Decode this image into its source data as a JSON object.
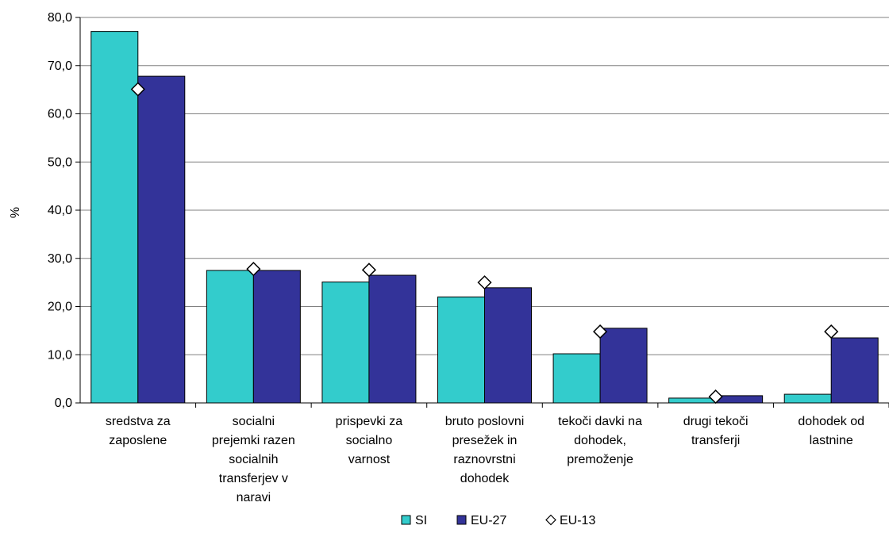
{
  "chart_data": {
    "type": "bar",
    "categories": [
      [
        "sredstva za",
        "zaposlene"
      ],
      [
        "socialni",
        "prejemki razen",
        "socialnih",
        "transferjev v",
        "naravi"
      ],
      [
        "prispevki za",
        "socialno",
        "varnost"
      ],
      [
        "bruto poslovni",
        "presežek in",
        "raznovrstni",
        "dohodek"
      ],
      [
        "tekoči davki na",
        "dohodek,",
        "premoženje"
      ],
      [
        "drugi tekoči",
        "transferji"
      ],
      [
        "dohodek od",
        "lastnine"
      ]
    ],
    "series": [
      {
        "name": "SI",
        "kind": "bar",
        "color": "#33CCCC",
        "values": [
          77.1,
          27.5,
          25.1,
          22.0,
          10.2,
          1.0,
          1.8
        ]
      },
      {
        "name": "EU-27",
        "kind": "bar",
        "color": "#333399",
        "values": [
          67.8,
          27.5,
          26.5,
          23.9,
          15.5,
          1.5,
          13.5
        ]
      },
      {
        "name": "EU-13",
        "kind": "marker",
        "marker": "diamond",
        "color": "#FFFFFF",
        "values": [
          65.1,
          27.8,
          27.6,
          25.0,
          14.8,
          1.3,
          14.8
        ]
      }
    ],
    "ylabel": "%",
    "xlabel": "",
    "ylim": [
      0,
      80
    ],
    "yticks": [
      "0,0",
      "10,0",
      "20,0",
      "30,0",
      "40,0",
      "50,0",
      "60,0",
      "70,0",
      "80,0"
    ],
    "grid": true,
    "legend_position": "bottom"
  }
}
